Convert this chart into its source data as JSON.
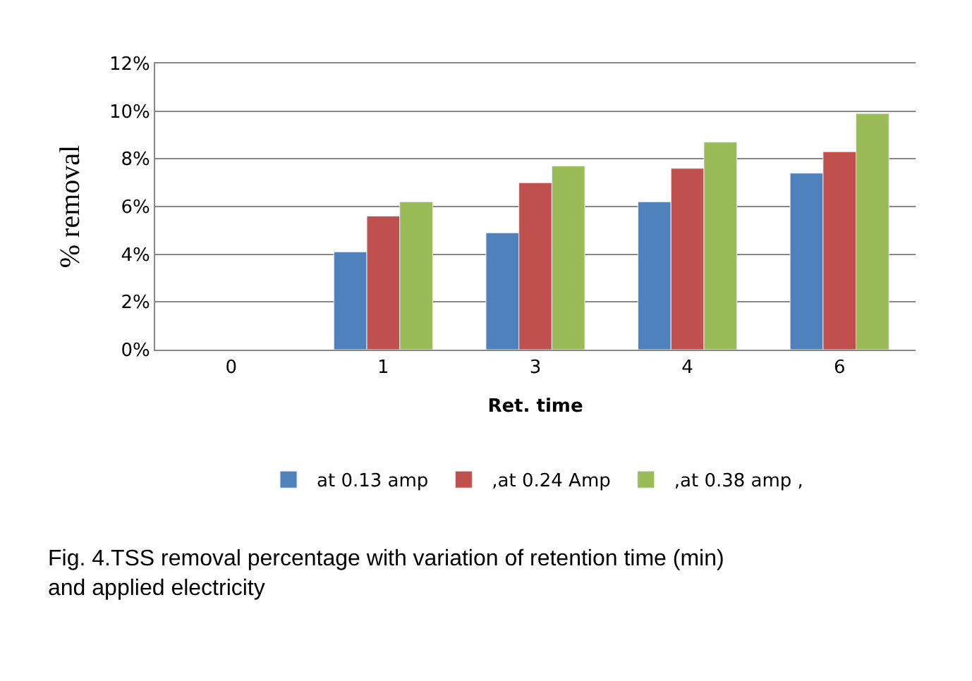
{
  "chart_data": {
    "type": "bar",
    "categories": [
      "0",
      "1",
      "3",
      "4",
      "6"
    ],
    "series": [
      {
        "name": "at 0.13 amp",
        "color": "#4f81bd",
        "values": [
          null,
          4.1,
          4.9,
          6.2,
          7.4
        ]
      },
      {
        "name": ",at 0.24 Amp",
        "color": "#c0504d",
        "values": [
          null,
          5.6,
          7.0,
          7.6,
          8.3
        ]
      },
      {
        "name": ",at 0.38 amp ,",
        "color": "#9bbb59",
        "values": [
          null,
          6.2,
          7.7,
          8.7,
          9.9
        ]
      }
    ],
    "xlabel": "Ret. time",
    "ylabel": "% removal",
    "ylim": [
      0,
      12
    ],
    "yticks": [
      {
        "value": 0,
        "label": "0%"
      },
      {
        "value": 2,
        "label": "2%"
      },
      {
        "value": 4,
        "label": "4%"
      },
      {
        "value": 6,
        "label": "6%"
      },
      {
        "value": 8,
        "label": "8%"
      },
      {
        "value": 10,
        "label": "10%"
      },
      {
        "value": 12,
        "label": "12%"
      }
    ],
    "grid": "y",
    "legend": "bottom",
    "annotations": [
      "Fig. 4.TSS removal percentage with variation of retention time (min) and applied electricity"
    ]
  }
}
